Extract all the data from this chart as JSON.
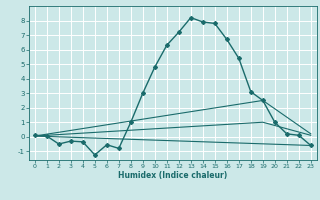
{
  "xlabel": "Humidex (Indice chaleur)",
  "x_ticks": [
    0,
    1,
    2,
    3,
    4,
    5,
    6,
    7,
    8,
    9,
    10,
    11,
    12,
    13,
    14,
    15,
    16,
    17,
    18,
    19,
    20,
    21,
    22,
    23
  ],
  "y_ticks": [
    -1,
    0,
    1,
    2,
    3,
    4,
    5,
    6,
    7,
    8
  ],
  "xlim": [
    -0.5,
    23.5
  ],
  "ylim": [
    -1.6,
    9.0
  ],
  "background_color": "#cce8e8",
  "line_color": "#1a6b6b",
  "grid_color": "#ffffff",
  "series1_x": [
    0,
    1,
    2,
    3,
    4,
    5,
    6,
    7,
    8,
    9,
    10,
    11,
    12,
    13,
    14,
    15,
    16,
    17,
    18,
    19,
    20,
    21,
    22,
    23
  ],
  "series1_y": [
    0.1,
    0.05,
    -0.5,
    -0.3,
    -0.35,
    -1.25,
    -0.55,
    -0.8,
    1.0,
    3.0,
    4.8,
    6.3,
    7.2,
    8.2,
    7.9,
    7.8,
    6.7,
    5.4,
    3.1,
    2.5,
    1.0,
    0.2,
    0.1,
    -0.6
  ],
  "series2_x": [
    0,
    23
  ],
  "series2_y": [
    0.05,
    -0.6
  ],
  "series3_x": [
    0,
    19,
    23
  ],
  "series3_y": [
    0.05,
    2.5,
    0.2
  ],
  "series4_x": [
    0,
    19,
    23
  ],
  "series4_y": [
    0.05,
    1.0,
    0.1
  ]
}
